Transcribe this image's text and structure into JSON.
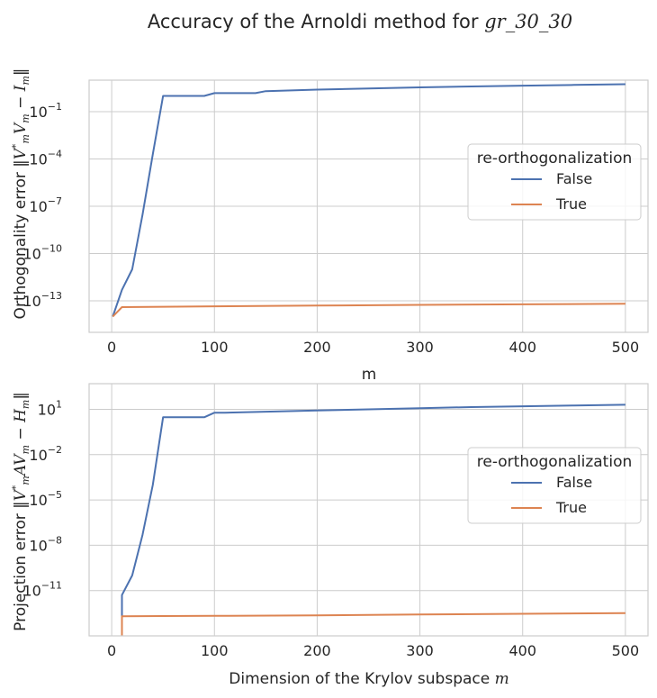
{
  "figure": {
    "suptitle_prefix": "Accuracy of the Arnoldi method for ",
    "suptitle_matrix": "gr_30_30"
  },
  "chart_data": [
    {
      "type": "line",
      "title": "",
      "xlabel": "m",
      "ylabel": "Orthogonality error ‖V*mVm − Im‖",
      "yscale": "log",
      "xlim": [
        -22,
        522
      ],
      "ylim": [
        1e-15,
        10.0
      ],
      "x_ticks": [
        0,
        100,
        200,
        300,
        400,
        500
      ],
      "y_ticks": [
        {
          "base": "10",
          "exp": "−1",
          "value": 0.1
        },
        {
          "base": "10",
          "exp": "−4",
          "value": 0.0001
        },
        {
          "base": "10",
          "exp": "−7",
          "value": 1e-07
        },
        {
          "base": "10",
          "exp": "−10",
          "value": 1e-10
        },
        {
          "base": "10",
          "exp": "−13",
          "value": 1e-13
        }
      ],
      "grid": true,
      "legend": {
        "title": "re-orthogonalization",
        "position": "center-right"
      },
      "series": [
        {
          "name": "False",
          "color": "#4c72b0",
          "x": [
            1,
            10,
            20,
            30,
            40,
            50,
            60,
            70,
            80,
            90,
            100,
            110,
            120,
            130,
            140,
            150,
            200,
            250,
            300,
            350,
            400,
            450,
            500
          ],
          "y": [
            1e-14,
            5e-13,
            1e-11,
            3e-08,
            0.0002,
            1.0,
            1.0,
            1.0,
            1.0,
            1.0,
            1.5,
            1.5,
            1.5,
            1.5,
            1.5,
            2.0,
            2.5,
            3.0,
            3.5,
            4.0,
            4.5,
            5.0,
            5.5
          ]
        },
        {
          "name": "True",
          "color": "#dd8452",
          "x": [
            1,
            10,
            50,
            100,
            200,
            300,
            400,
            500
          ],
          "y": [
            1e-14,
            4e-14,
            4.2e-14,
            4.5e-14,
            5e-14,
            5.5e-14,
            6e-14,
            6.5e-14
          ]
        }
      ]
    },
    {
      "type": "line",
      "title": "",
      "xlabel": "Dimension of the Krylov subspace m",
      "ylabel": "Projection error ‖V*mAVm − Hm‖",
      "yscale": "log",
      "xlim": [
        -22,
        522
      ],
      "ylim": [
        1e-14,
        500.0
      ],
      "x_ticks": [
        0,
        100,
        200,
        300,
        400,
        500
      ],
      "y_ticks": [
        {
          "base": "10",
          "exp": "1",
          "value": 10
        },
        {
          "base": "10",
          "exp": "−2",
          "value": 0.01
        },
        {
          "base": "10",
          "exp": "−5",
          "value": 1e-05
        },
        {
          "base": "10",
          "exp": "−8",
          "value": 1e-08
        },
        {
          "base": "10",
          "exp": "−11",
          "value": 1e-11
        }
      ],
      "grid": true,
      "legend": {
        "title": "re-orthogonalization",
        "position": "center-right"
      },
      "series": [
        {
          "name": "False",
          "color": "#4c72b0",
          "x": [
            10,
            10,
            20,
            30,
            40,
            50,
            60,
            70,
            80,
            90,
            100,
            110,
            150,
            200,
            250,
            300,
            350,
            400,
            450,
            500
          ],
          "y": [
            1e-14,
            5e-12,
            1e-10,
            5e-08,
            0.0001,
            3.0,
            3.0,
            3.0,
            3.0,
            3.0,
            6.0,
            6.0,
            7.0,
            8.5,
            10.0,
            12.0,
            14.0,
            16.0,
            18.0,
            20.0
          ]
        },
        {
          "name": "True",
          "color": "#dd8452",
          "x": [
            10,
            10,
            50,
            100,
            200,
            300,
            400,
            500
          ],
          "y": [
            1e-14,
            2e-13,
            2.05e-13,
            2.1e-13,
            2.3e-13,
            2.6e-13,
            2.9e-13,
            3.2e-13
          ]
        }
      ]
    }
  ]
}
